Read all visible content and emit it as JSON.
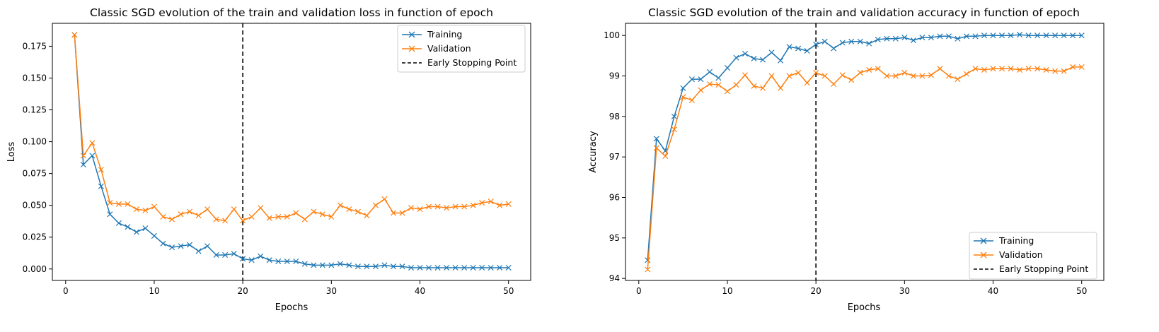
{
  "colors": {
    "training": "#1f77b4",
    "validation": "#ff7f0e",
    "early_stop": "#000000"
  },
  "chart_data": [
    {
      "type": "line",
      "title": "Classic SGD evolution of the train and validation loss in function of epoch",
      "xlabel": "Epochs",
      "ylabel": "Loss",
      "xlim": [
        -1.5,
        52.5
      ],
      "ylim": [
        -0.009,
        0.193
      ],
      "xticks": [
        0,
        10,
        20,
        30,
        40,
        50
      ],
      "xtick_labels": [
        "0",
        "10",
        "20",
        "30",
        "40",
        "50"
      ],
      "yticks": [
        0.0,
        0.025,
        0.05,
        0.075,
        0.1,
        0.125,
        0.15,
        0.175
      ],
      "ytick_labels": [
        "0.000",
        "0.025",
        "0.050",
        "0.075",
        "0.100",
        "0.125",
        "0.150",
        "0.175"
      ],
      "legend_position": "top-right",
      "early_stop_x": 20,
      "x": [
        1,
        2,
        3,
        4,
        5,
        6,
        7,
        8,
        9,
        10,
        11,
        12,
        13,
        14,
        15,
        16,
        17,
        18,
        19,
        20,
        21,
        22,
        23,
        24,
        25,
        26,
        27,
        28,
        29,
        30,
        31,
        32,
        33,
        34,
        35,
        36,
        37,
        38,
        39,
        40,
        41,
        42,
        43,
        44,
        45,
        46,
        47,
        48,
        49,
        50
      ],
      "series": [
        {
          "name": "Training",
          "marker": "x",
          "values": [
            0.184,
            0.082,
            0.089,
            0.065,
            0.043,
            0.036,
            0.033,
            0.029,
            0.032,
            0.026,
            0.02,
            0.017,
            0.018,
            0.019,
            0.014,
            0.018,
            0.011,
            0.011,
            0.012,
            0.008,
            0.007,
            0.01,
            0.007,
            0.006,
            0.006,
            0.006,
            0.004,
            0.003,
            0.003,
            0.003,
            0.004,
            0.003,
            0.002,
            0.002,
            0.002,
            0.003,
            0.002,
            0.002,
            0.001,
            0.001,
            0.001,
            0.001,
            0.001,
            0.001,
            0.001,
            0.001,
            0.001,
            0.001,
            0.001,
            0.001
          ]
        },
        {
          "name": "Validation",
          "marker": "x",
          "values": [
            0.184,
            0.089,
            0.099,
            0.078,
            0.052,
            0.051,
            0.051,
            0.047,
            0.046,
            0.049,
            0.041,
            0.039,
            0.043,
            0.045,
            0.042,
            0.047,
            0.039,
            0.038,
            0.047,
            0.038,
            0.041,
            0.048,
            0.04,
            0.041,
            0.041,
            0.044,
            0.039,
            0.045,
            0.043,
            0.041,
            0.05,
            0.047,
            0.045,
            0.042,
            0.05,
            0.055,
            0.044,
            0.044,
            0.048,
            0.047,
            0.049,
            0.049,
            0.048,
            0.049,
            0.049,
            0.05,
            0.052,
            0.053,
            0.05,
            0.051
          ]
        },
        {
          "name": "Early Stopping Point",
          "style": "dashed-vertical"
        }
      ]
    },
    {
      "type": "line",
      "title": "Classic SGD evolution of the train and validation accuracy in function of epoch",
      "xlabel": "Epochs",
      "ylabel": "Accuracy",
      "xlim": [
        -1.5,
        52.5
      ],
      "ylim": [
        93.95,
        100.3
      ],
      "xticks": [
        0,
        10,
        20,
        30,
        40,
        50
      ],
      "xtick_labels": [
        "0",
        "10",
        "20",
        "30",
        "40",
        "50"
      ],
      "yticks": [
        94,
        95,
        96,
        97,
        98,
        99,
        100
      ],
      "ytick_labels": [
        "94",
        "95",
        "96",
        "97",
        "98",
        "99",
        "100"
      ],
      "legend_position": "bottom-right",
      "early_stop_x": 20,
      "x": [
        1,
        2,
        3,
        4,
        5,
        6,
        7,
        8,
        9,
        10,
        11,
        12,
        13,
        14,
        15,
        16,
        17,
        18,
        19,
        20,
        21,
        22,
        23,
        24,
        25,
        26,
        27,
        28,
        29,
        30,
        31,
        32,
        33,
        34,
        35,
        36,
        37,
        38,
        39,
        40,
        41,
        42,
        43,
        44,
        45,
        46,
        47,
        48,
        49,
        50
      ],
      "series": [
        {
          "name": "Training",
          "marker": "x",
          "values": [
            94.45,
            97.45,
            97.15,
            98.0,
            98.7,
            98.92,
            98.92,
            99.1,
            98.95,
            99.2,
            99.45,
            99.55,
            99.43,
            99.4,
            99.58,
            99.38,
            99.72,
            99.68,
            99.62,
            99.78,
            99.85,
            99.68,
            99.82,
            99.85,
            99.85,
            99.8,
            99.9,
            99.92,
            99.92,
            99.95,
            99.88,
            99.95,
            99.95,
            99.98,
            99.98,
            99.92,
            99.98,
            99.98,
            100.0,
            100.0,
            100.0,
            100.0,
            100.02,
            100.0,
            100.0,
            100.0,
            100.0,
            100.0,
            100.0,
            100.0
          ]
        },
        {
          "name": "Validation",
          "marker": "x",
          "values": [
            94.22,
            97.22,
            97.02,
            97.68,
            98.48,
            98.4,
            98.65,
            98.8,
            98.78,
            98.62,
            98.78,
            99.02,
            98.75,
            98.7,
            99.0,
            98.7,
            99.0,
            99.08,
            98.83,
            99.08,
            99.0,
            98.8,
            99.02,
            98.9,
            99.08,
            99.15,
            99.18,
            99.0,
            99.0,
            99.08,
            99.0,
            99.0,
            99.02,
            99.18,
            99.0,
            98.92,
            99.05,
            99.18,
            99.15,
            99.18,
            99.18,
            99.18,
            99.15,
            99.18,
            99.18,
            99.15,
            99.12,
            99.12,
            99.22,
            99.22
          ]
        },
        {
          "name": "Early Stopping Point",
          "style": "dashed-vertical"
        }
      ]
    }
  ]
}
